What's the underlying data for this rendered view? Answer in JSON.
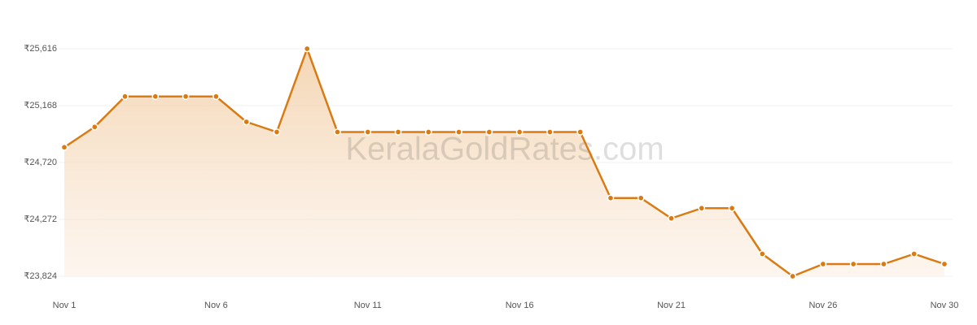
{
  "chart_data": {
    "type": "line",
    "watermark": "KeralaGoldRates.com",
    "categories": [
      "Nov 1",
      null,
      null,
      null,
      null,
      "Nov 6",
      null,
      null,
      null,
      null,
      "Nov 11",
      null,
      null,
      null,
      null,
      "Nov 16",
      null,
      null,
      null,
      null,
      "Nov 21",
      null,
      null,
      null,
      null,
      "Nov 26",
      null,
      null,
      null,
      "Nov 30"
    ],
    "values": [
      24840,
      25000,
      25240,
      25240,
      25240,
      25240,
      25040,
      24960,
      25616,
      24960,
      24960,
      24960,
      24960,
      24960,
      24960,
      24960,
      24960,
      24960,
      24440,
      24440,
      24280,
      24360,
      24360,
      24000,
      23824,
      23920,
      23920,
      23920,
      24000,
      23920
    ],
    "color": "#d97b12",
    "ylim": [
      23824,
      25616
    ],
    "yticks": [
      {
        "value": 23824,
        "label": "₹23,824"
      },
      {
        "value": 24272,
        "label": "₹24,272"
      },
      {
        "value": 24720,
        "label": "₹24,720"
      },
      {
        "value": 25168,
        "label": "₹25,168"
      },
      {
        "value": 25616,
        "label": "₹25,616"
      }
    ],
    "grid": true
  }
}
